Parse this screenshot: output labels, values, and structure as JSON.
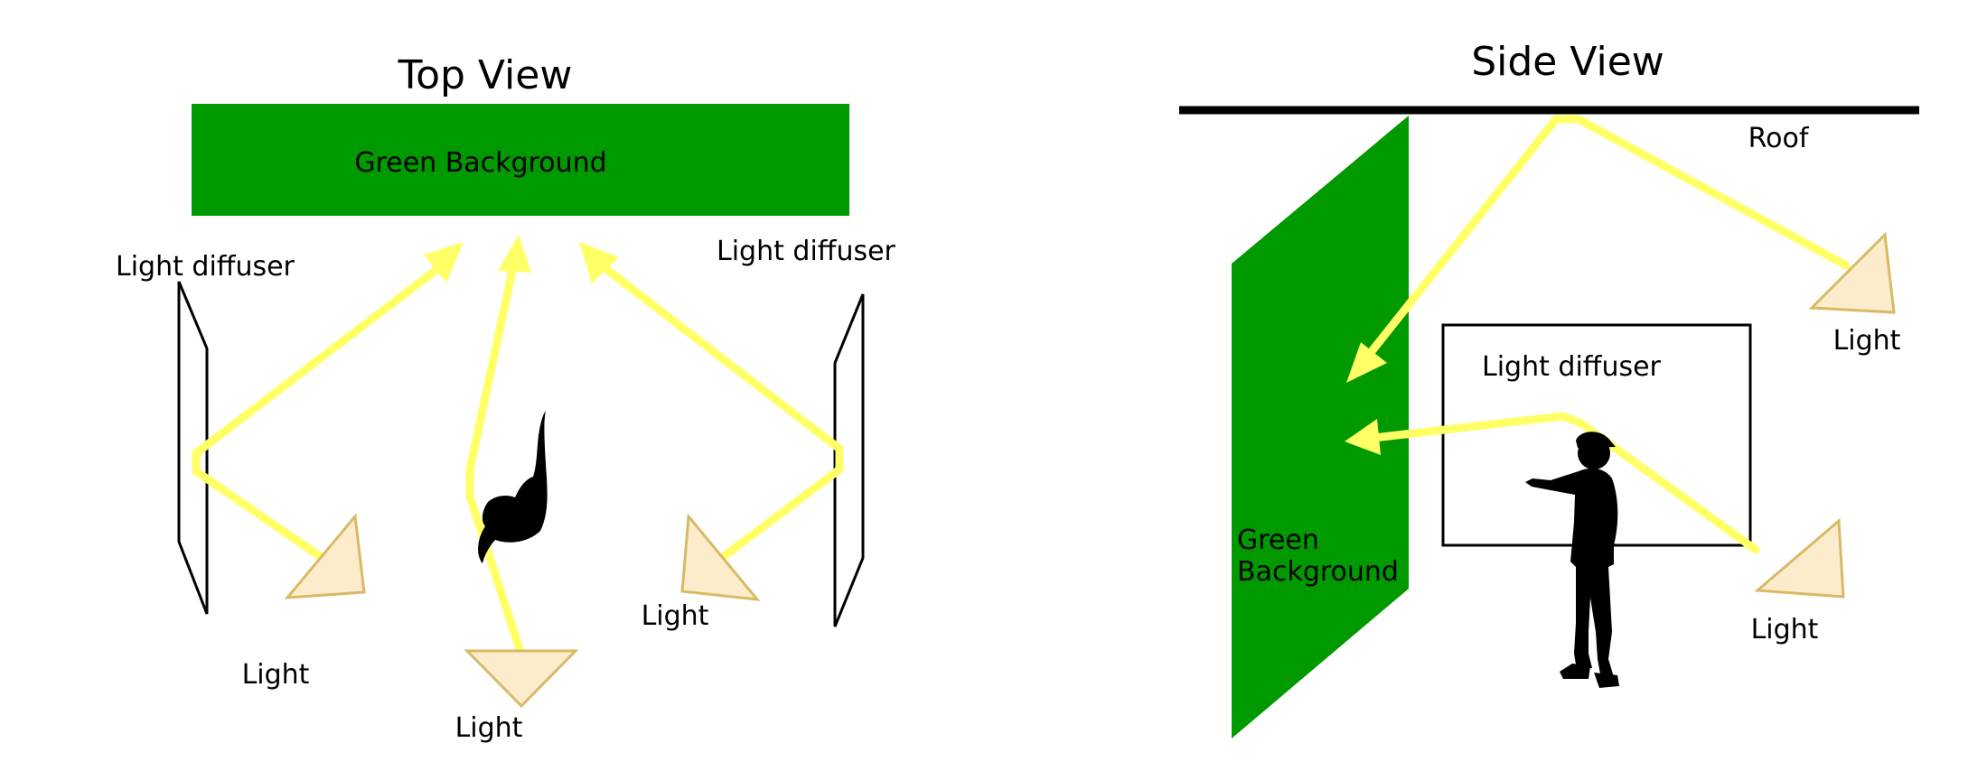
{
  "colors": {
    "green_background": "#009900",
    "light_ray": "#ffff66",
    "light_fill": "#fdeccc",
    "light_stroke": "#d8b966",
    "silhouette": "#000000"
  },
  "top_view": {
    "title": "Top View",
    "background_label": "Green Background",
    "diffuser_left_label": "Light diffuser",
    "diffuser_right_label": "Light diffuser",
    "light_left_label": "Light",
    "light_center_label": "Light",
    "light_right_label": "Light"
  },
  "side_view": {
    "title": "Side View",
    "roof_label": "Roof",
    "background_label_line1": "Green",
    "background_label_line2": "Background",
    "diffuser_label": "Light diffuser",
    "light_top_label": "Light",
    "light_bottom_label": "Light"
  }
}
